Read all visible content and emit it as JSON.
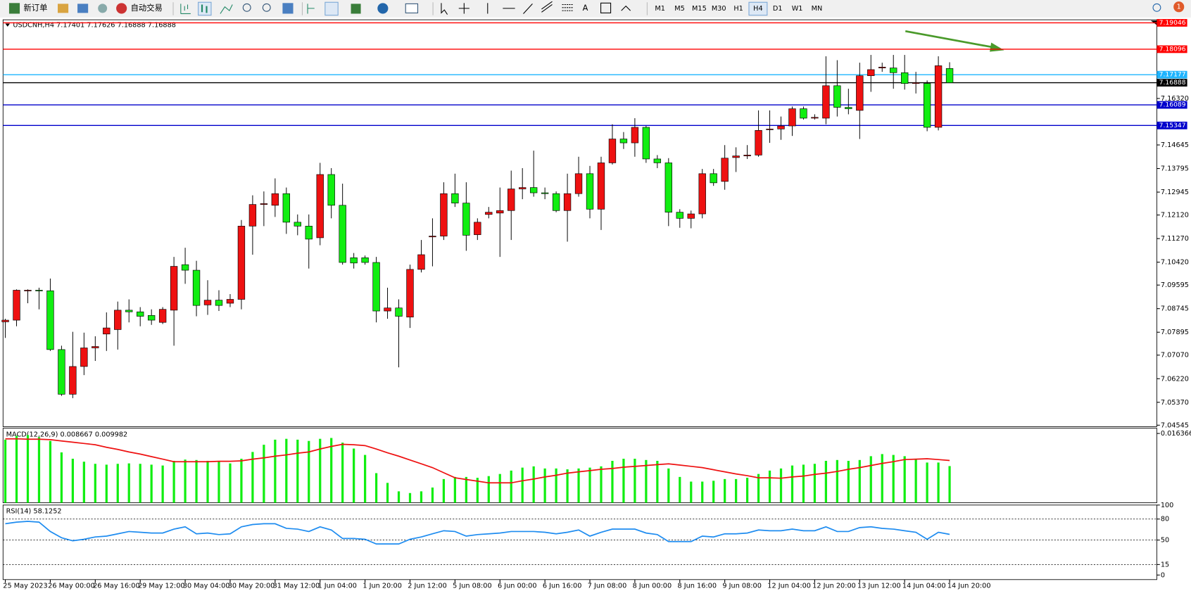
{
  "toolbar": {
    "new_order": "新订单",
    "auto_trading": "自动交易",
    "timeframes": [
      "M1",
      "M5",
      "M15",
      "M30",
      "H1",
      "H4",
      "D1",
      "W1",
      "MN"
    ],
    "active_timeframe": 5,
    "alerts": "1"
  },
  "chart_data": [
    {
      "type": "candlestick",
      "title": "USDCNH,H4  7.17401 7.17626 7.16888 7.16888",
      "categories": [
        "25 May 2023",
        null,
        null,
        null,
        "26 May 00:00",
        null,
        null,
        null,
        "26 May 16:00",
        null,
        null,
        null,
        "29 May 12:00",
        null,
        null,
        null,
        "30 May 04:00",
        null,
        null,
        null,
        "30 May 20:00",
        null,
        null,
        null,
        "31 May 12:00",
        null,
        null,
        null,
        "1 Jun 04:00",
        null,
        null,
        null,
        "1 Jun 20:00",
        null,
        null,
        null,
        "2 Jun 12:00",
        null,
        null,
        null,
        "5 Jun 08:00",
        null,
        null,
        null,
        "6 Jun 00:00",
        null,
        null,
        null,
        "6 Jun 16:00",
        null,
        null,
        null,
        "7 Jun 08:00",
        null,
        null,
        null,
        "8 Jun 00:00",
        null,
        null,
        null,
        "8 Jun 16:00",
        null,
        null,
        null,
        "9 Jun 08:00",
        null,
        null,
        null,
        "12 Jun 04:00",
        null,
        null,
        null,
        "12 Jun 20:00",
        null,
        null,
        null,
        "13 Jun 12:00",
        null,
        null,
        null,
        "14 Jun 04:00",
        null,
        null,
        null,
        "14 Jun 20:00"
      ],
      "ohlc": [
        [
          7.0827,
          7.0838,
          7.0769,
          7.0833
        ],
        [
          7.0833,
          7.0944,
          7.0811,
          7.0941
        ],
        [
          7.0939,
          7.0944,
          7.0894,
          7.0941
        ],
        [
          7.0941,
          7.095,
          7.0872,
          7.0939
        ],
        [
          7.0939,
          7.0983,
          7.0722,
          7.0727
        ],
        [
          7.0727,
          7.0741,
          7.056,
          7.0566
        ],
        [
          7.0566,
          7.0791,
          7.0552,
          7.0666
        ],
        [
          7.0666,
          7.0788,
          7.0635,
          7.0733
        ],
        [
          7.0733,
          7.0775,
          7.0686,
          7.0738
        ],
        [
          7.0783,
          7.0861,
          7.0722,
          7.0805
        ],
        [
          7.0799,
          7.09,
          7.0727,
          7.0869
        ],
        [
          7.0869,
          7.0908,
          7.0825,
          7.0863
        ],
        [
          7.0863,
          7.088,
          7.0811,
          7.0847
        ],
        [
          7.085,
          7.0872,
          7.0816,
          7.0833
        ],
        [
          7.0825,
          7.088,
          7.0819,
          7.0872
        ],
        [
          7.0869,
          7.1061,
          7.0741,
          7.1027
        ],
        [
          7.1033,
          7.1094,
          7.0964,
          7.1013
        ],
        [
          7.1013,
          7.1047,
          7.0847,
          7.0886
        ],
        [
          7.0888,
          7.0977,
          7.0852,
          7.0905
        ],
        [
          7.0905,
          7.0941,
          7.0866,
          7.0886
        ],
        [
          7.0894,
          7.0927,
          7.088,
          7.0908
        ],
        [
          7.0908,
          7.1194,
          7.0872,
          7.1172
        ],
        [
          7.1172,
          7.1283,
          7.1069,
          7.125
        ],
        [
          7.125,
          7.1297,
          7.1172,
          7.1253
        ],
        [
          7.1247,
          7.1344,
          7.1205,
          7.1289
        ],
        [
          7.1289,
          7.1311,
          7.1144,
          7.1186
        ],
        [
          7.1186,
          7.1214,
          7.1139,
          7.1172
        ],
        [
          7.1172,
          7.1214,
          7.1019,
          7.1125
        ],
        [
          7.113,
          7.14,
          7.1103,
          7.1358
        ],
        [
          7.1358,
          7.1381,
          7.12,
          7.1247
        ],
        [
          7.1247,
          7.1325,
          7.1033,
          7.1041
        ],
        [
          7.1058,
          7.1075,
          7.1019,
          7.1039
        ],
        [
          7.1058,
          7.1066,
          7.1033,
          7.1041
        ],
        [
          7.1041,
          7.1061,
          7.0825,
          7.0866
        ],
        [
          7.0866,
          7.095,
          7.0838,
          7.0877
        ],
        [
          7.0877,
          7.0908,
          7.0663,
          7.0847
        ],
        [
          7.0844,
          7.1033,
          7.0805,
          7.1016
        ],
        [
          7.1016,
          7.1122,
          7.1005,
          7.1069
        ],
        [
          7.1133,
          7.12,
          7.1027,
          7.1136
        ],
        [
          7.1136,
          7.133,
          7.1122,
          7.1289
        ],
        [
          7.1289,
          7.1361,
          7.1241,
          7.1255
        ],
        [
          7.1255,
          7.133,
          7.1083,
          7.1139
        ],
        [
          7.1141,
          7.12,
          7.1122,
          7.1186
        ],
        [
          7.1214,
          7.1241,
          7.12,
          7.1222
        ],
        [
          7.1219,
          7.1311,
          7.1061,
          7.1228
        ],
        [
          7.1228,
          7.1372,
          7.1122,
          7.1306
        ],
        [
          7.1306,
          7.1381,
          7.1269,
          7.1311
        ],
        [
          7.1311,
          7.1444,
          7.1278,
          7.1292
        ],
        [
          7.1292,
          7.1311,
          7.1269,
          7.1289
        ],
        [
          7.1289,
          7.1297,
          7.1222,
          7.1228
        ],
        [
          7.1228,
          7.1361,
          7.1116,
          7.1289
        ],
        [
          7.1289,
          7.1422,
          7.1278,
          7.1361
        ],
        [
          7.1361,
          7.1389,
          7.12,
          7.1233
        ],
        [
          7.1233,
          7.1422,
          7.1158,
          7.14
        ],
        [
          7.14,
          7.1539,
          7.1394,
          7.1486
        ],
        [
          7.1486,
          7.1511,
          7.145,
          7.1472
        ],
        [
          7.1472,
          7.1561,
          7.1422,
          7.1528
        ],
        [
          7.1528,
          7.1533,
          7.14,
          7.1414
        ],
        [
          7.1414,
          7.1428,
          7.1381,
          7.14
        ],
        [
          7.14,
          7.1417,
          7.1172,
          7.1222
        ],
        [
          7.1222,
          7.1233,
          7.1166,
          7.12
        ],
        [
          7.12,
          7.1228,
          7.1164,
          7.1216
        ],
        [
          7.1216,
          7.1378,
          7.12,
          7.1361
        ],
        [
          7.1361,
          7.1378,
          7.1317,
          7.1328
        ],
        [
          7.1333,
          7.1464,
          7.1303,
          7.1417
        ],
        [
          7.1419,
          7.1456,
          7.1367,
          7.1425
        ],
        [
          7.1425,
          7.1464,
          7.1414,
          7.1428
        ],
        [
          7.1428,
          7.1589,
          7.1422,
          7.1517
        ],
        [
          7.152,
          7.1589,
          7.1472,
          7.1522
        ],
        [
          7.1522,
          7.1567,
          7.1483,
          7.1533
        ],
        [
          7.1533,
          7.1603,
          7.1497,
          7.1595
        ],
        [
          7.1595,
          7.1603,
          7.1556,
          7.1561
        ],
        [
          7.1561,
          7.1575,
          7.1556,
          7.1564
        ],
        [
          7.1561,
          7.1784,
          7.1539,
          7.1678
        ],
        [
          7.1678,
          7.177,
          7.1567,
          7.16
        ],
        [
          7.16,
          7.1667,
          7.1575,
          7.1595
        ],
        [
          7.1589,
          7.1761,
          7.1486,
          7.1714
        ],
        [
          7.1714,
          7.1789,
          7.1656,
          7.1736
        ],
        [
          7.1742,
          7.1761,
          7.1728,
          7.1745
        ],
        [
          7.1742,
          7.1789,
          7.1667,
          7.1725
        ],
        [
          7.1725,
          7.1789,
          7.1664,
          7.1686
        ],
        [
          7.1686,
          7.1728,
          7.165,
          7.1689
        ],
        [
          7.1686,
          7.1697,
          7.1514,
          7.1528
        ],
        [
          7.1528,
          7.1784,
          7.1517,
          7.175
        ],
        [
          7.17401,
          7.17626,
          7.16888,
          7.16888
        ]
      ],
      "up_color": "#ee1111",
      "down_color": "#11ee11",
      "ylim": [
        7.0449,
        7.19129
      ],
      "yticks": [
        {
          "value": 7.1632,
          "label": "7.16320"
        },
        7.14645,
        7.13795,
        7.12945,
        {
          "value": 7.1212,
          "label": "7.12120"
        },
        {
          "value": 7.1127,
          "label": "7.11270"
        },
        {
          "value": 7.1042,
          "label": "7.10420"
        },
        7.09595,
        7.08745,
        7.07895,
        {
          "value": 7.0707,
          "label": "7.07070"
        },
        {
          "value": 7.0622,
          "label": "7.06220"
        },
        {
          "value": 7.0537,
          "label": "7.05370"
        },
        7.04545
      ],
      "levels": [
        {
          "value": 7.19046,
          "color": "#ff0000"
        },
        {
          "value": 7.18096,
          "color": "#ff0000"
        },
        {
          "value": 7.17177,
          "color": "#1eb4ff"
        },
        {
          "value": 7.16888,
          "color": "#000000"
        },
        {
          "value": 7.16089,
          "color": "#0000cc"
        },
        {
          "value": 7.15347,
          "color": "#0000cc"
        }
      ]
    },
    {
      "type": "macd",
      "title": "MACD(12,26,9) 0.008667 0.009982",
      "color": "#11ee11",
      "signal_color": "#ee1111",
      "values": [
        0.0149,
        0.0158,
        0.016,
        0.0155,
        0.0146,
        0.0119,
        0.0104,
        0.0097,
        0.0092,
        0.009,
        0.0092,
        0.0093,
        0.0092,
        0.009,
        0.0088,
        0.0099,
        0.0102,
        0.0101,
        0.0099,
        0.0097,
        0.0093,
        0.0104,
        0.012,
        0.0137,
        0.0149,
        0.0151,
        0.0149,
        0.0146,
        0.0151,
        0.0153,
        0.0142,
        0.0128,
        0.0113,
        0.007,
        0.0047,
        0.0027,
        0.0023,
        0.0027,
        0.0036,
        0.0056,
        0.0061,
        0.0061,
        0.0059,
        0.0063,
        0.0068,
        0.0076,
        0.0083,
        0.0086,
        0.0081,
        0.0081,
        0.0079,
        0.0081,
        0.0083,
        0.0086,
        0.0099,
        0.0104,
        0.0104,
        0.0101,
        0.0099,
        0.0081,
        0.0061,
        0.005,
        0.005,
        0.0052,
        0.0056,
        0.0056,
        0.0059,
        0.0068,
        0.0076,
        0.0081,
        0.0088,
        0.009,
        0.0092,
        0.0099,
        0.0101,
        0.0099,
        0.0101,
        0.011,
        0.0115,
        0.0113,
        0.011,
        0.0104,
        0.0095,
        0.0095,
        0.008667
      ],
      "signal": [
        0.0151,
        0.0151,
        0.015,
        0.015,
        0.0149,
        0.0146,
        0.0143,
        0.014,
        0.0137,
        0.0131,
        0.0126,
        0.012,
        0.0115,
        0.0109,
        0.0103,
        0.0097,
        0.0097,
        0.0097,
        0.0097,
        0.0098,
        0.0098,
        0.0099,
        0.0103,
        0.0106,
        0.011,
        0.0113,
        0.0117,
        0.012,
        0.0127,
        0.0133,
        0.0138,
        0.0137,
        0.0135,
        0.0127,
        0.0118,
        0.011,
        0.0101,
        0.0092,
        0.0083,
        0.0071,
        0.0059,
        0.0055,
        0.0051,
        0.0047,
        0.0047,
        0.0047,
        0.0052,
        0.0056,
        0.0061,
        0.0065,
        0.007,
        0.0073,
        0.0076,
        0.0079,
        0.0081,
        0.0084,
        0.0086,
        0.0088,
        0.009,
        0.0092,
        0.0089,
        0.0086,
        0.0083,
        0.0078,
        0.0073,
        0.0068,
        0.0064,
        0.0059,
        0.0059,
        0.0058,
        0.0061,
        0.0063,
        0.0067,
        0.007,
        0.0074,
        0.0079,
        0.0083,
        0.0088,
        0.0093,
        0.0097,
        0.0102,
        0.0103,
        0.0104,
        0.0102,
        0.009982
      ],
      "ylim": [
        0,
        0.0176
      ],
      "yticks": [
        0.016366
      ]
    },
    {
      "type": "line",
      "title": "RSI(14) 58.1252",
      "color": "#1e8cf0",
      "values": [
        73.3,
        75.6,
        76.7,
        75.6,
        62.2,
        53.3,
        48.9,
        51.1,
        54.4,
        55.6,
        58.9,
        62.2,
        61.1,
        60.0,
        60.0,
        65.6,
        68.9,
        58.9,
        60.0,
        57.8,
        58.9,
        68.9,
        72.2,
        73.3,
        73.3,
        66.7,
        65.6,
        62.2,
        68.9,
        64.4,
        52.2,
        52.2,
        51.1,
        44.4,
        44.4,
        44.4,
        51.1,
        54.4,
        58.9,
        63.3,
        62.2,
        55.6,
        57.8,
        58.9,
        60.0,
        62.2,
        62.2,
        62.2,
        61.1,
        58.9,
        61.1,
        64.4,
        55.6,
        61.1,
        65.6,
        65.6,
        65.6,
        60.0,
        57.8,
        47.8,
        47.8,
        47.8,
        55.6,
        54.4,
        58.9,
        58.9,
        60.0,
        64.4,
        63.3,
        63.3,
        65.6,
        63.3,
        63.3,
        68.9,
        62.2,
        62.2,
        67.8,
        68.9,
        66.7,
        65.6,
        63.3,
        61.1,
        51.1,
        61.1,
        58.1252
      ],
      "ylim": [
        0,
        100
      ],
      "yticks": [
        100,
        80,
        50,
        15,
        0
      ],
      "levels": [
        80,
        50,
        15
      ]
    }
  ]
}
